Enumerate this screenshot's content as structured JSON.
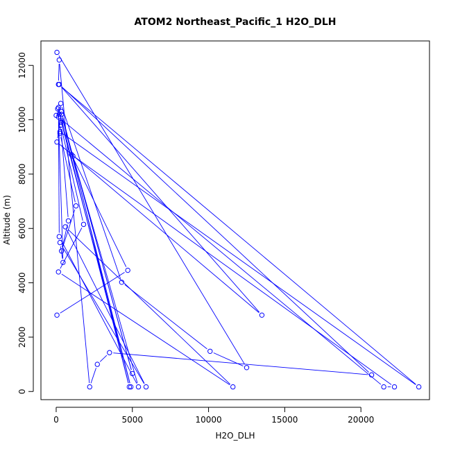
{
  "chart_data": {
    "type": "scatter",
    "title": "ATOM2 Northeast_Pacific_1 H2O_DLH",
    "xlabel": "H2O_DLH",
    "ylabel": "Altitude (m)",
    "xlim": [
      -1000,
      24500
    ],
    "ylim": [
      -300,
      12900
    ],
    "xticks": [
      0,
      5000,
      10000,
      15000,
      20000
    ],
    "xtick_labels": [
      "0",
      "5000",
      "10000",
      "15000",
      "20000"
    ],
    "yticks": [
      0,
      2000,
      4000,
      6000,
      8000,
      10000,
      12000
    ],
    "ytick_labels": [
      "0",
      "2000",
      "4000",
      "6000",
      "8000",
      "10000",
      "12000"
    ],
    "grid": false,
    "legend": "none",
    "series": [
      {
        "color": "#0000ff",
        "marker": "open-circle",
        "connected": true,
        "x": [
          50,
          12500,
          10100,
          4300,
          300,
          0,
          100,
          250,
          23800,
          150,
          200,
          2200,
          2700,
          3500,
          20700,
          200,
          13500,
          50,
          350,
          4800,
          150,
          200,
          5400,
          1100,
          5000,
          350,
          4900,
          200,
          300,
          250,
          1300,
          350,
          800,
          300,
          1800,
          150,
          11600,
          600,
          5900,
          250,
          450,
          150,
          21500,
          22200,
          1000,
          4700,
          50
        ],
        "y": [
          12480,
          880,
          1480,
          4020,
          10600,
          10160,
          10400,
          9560,
          170,
          11300,
          12200,
          170,
          1000,
          1430,
          610,
          11300,
          2810,
          9180,
          10300,
          170,
          10450,
          5700,
          170,
          8660,
          660,
          10200,
          170,
          10200,
          9900,
          9500,
          6830,
          5170,
          6280,
          9800,
          6150,
          4400,
          170,
          6060,
          170,
          5480,
          4750,
          10100,
          170,
          170,
          8720,
          4460,
          2810
        ]
      }
    ]
  }
}
